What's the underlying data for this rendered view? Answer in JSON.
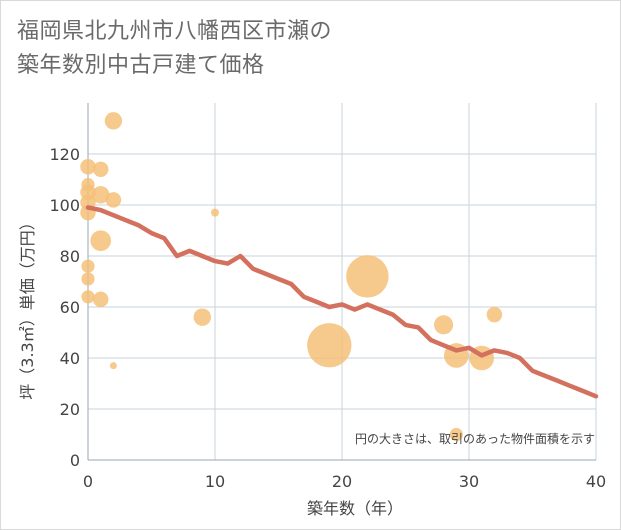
{
  "chart_data": {
    "type": "scatter",
    "title": [
      "福岡県北九州市八幡西区市瀬の",
      "築年数別中古戸建て価格"
    ],
    "xlabel": "築年数（年）",
    "ylabel": "坪（3.3㎡）単価（万円）",
    "xlim": [
      0,
      40
    ],
    "ylim": [
      0,
      140
    ],
    "xticks": [
      0,
      10,
      20,
      30,
      40
    ],
    "yticks": [
      0,
      20,
      40,
      60,
      80,
      100,
      120
    ],
    "grid": true,
    "note": "円の大きさは、取引のあった物件面積を示す",
    "colors": {
      "bubble": "#f5c078",
      "line": "#d4715e",
      "grid": "#c8d3dd"
    },
    "bubbles": [
      {
        "x": 0,
        "y": 115,
        "size": 3
      },
      {
        "x": 0,
        "y": 108,
        "size": 2
      },
      {
        "x": 0,
        "y": 105,
        "size": 3
      },
      {
        "x": 0,
        "y": 101,
        "size": 3
      },
      {
        "x": 0,
        "y": 97,
        "size": 3
      },
      {
        "x": 0,
        "y": 76,
        "size": 2
      },
      {
        "x": 0,
        "y": 71,
        "size": 2
      },
      {
        "x": 0,
        "y": 64,
        "size": 2
      },
      {
        "x": 1,
        "y": 114,
        "size": 3
      },
      {
        "x": 1,
        "y": 104,
        "size": 4
      },
      {
        "x": 1,
        "y": 86,
        "size": 6
      },
      {
        "x": 1,
        "y": 63,
        "size": 3
      },
      {
        "x": 2,
        "y": 133,
        "size": 4
      },
      {
        "x": 2,
        "y": 102,
        "size": 3
      },
      {
        "x": 2,
        "y": 37,
        "size": 0.3
      },
      {
        "x": 9,
        "y": 56,
        "size": 4
      },
      {
        "x": 10,
        "y": 97,
        "size": 0.5
      },
      {
        "x": 19,
        "y": 45,
        "size": 33
      },
      {
        "x": 22,
        "y": 72,
        "size": 30
      },
      {
        "x": 28,
        "y": 53,
        "size": 5
      },
      {
        "x": 29,
        "y": 41,
        "size": 9
      },
      {
        "x": 29,
        "y": 10,
        "size": 2
      },
      {
        "x": 31,
        "y": 40,
        "size": 9
      },
      {
        "x": 32,
        "y": 57,
        "size": 3
      }
    ],
    "trend": {
      "x": [
        0,
        1,
        2,
        3,
        4,
        5,
        6,
        7,
        8,
        9,
        10,
        11,
        12,
        13,
        14,
        15,
        16,
        17,
        18,
        19,
        20,
        21,
        22,
        23,
        24,
        25,
        26,
        27,
        28,
        29,
        30,
        31,
        32,
        33,
        34,
        35,
        36,
        37,
        38,
        39,
        40
      ],
      "y": [
        99,
        98,
        96,
        94,
        92,
        89,
        87,
        80,
        82,
        80,
        78,
        77,
        80,
        75,
        73,
        71,
        69,
        64,
        62,
        60,
        61,
        59,
        61,
        59,
        57,
        53,
        52,
        47,
        45,
        43,
        44,
        41,
        43,
        42,
        40,
        35,
        33,
        31,
        29,
        27,
        25
      ]
    }
  }
}
